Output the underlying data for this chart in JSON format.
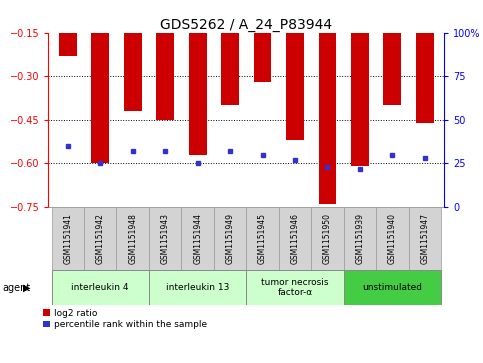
{
  "title": "GDS5262 / A_24_P83944",
  "samples": [
    "GSM1151941",
    "GSM1151942",
    "GSM1151948",
    "GSM1151943",
    "GSM1151944",
    "GSM1151949",
    "GSM1151945",
    "GSM1151946",
    "GSM1151950",
    "GSM1151939",
    "GSM1151940",
    "GSM1151947"
  ],
  "log2_ratio": [
    -0.23,
    -0.6,
    -0.42,
    -0.45,
    -0.57,
    -0.4,
    -0.32,
    -0.52,
    -0.74,
    -0.61,
    -0.4,
    -0.46
  ],
  "percentile_rank": [
    35,
    25,
    32,
    32,
    25,
    32,
    30,
    27,
    23,
    22,
    30,
    28
  ],
  "ylim_left": [
    -0.75,
    -0.15
  ],
  "ylim_right": [
    0,
    100
  ],
  "yticks_left": [
    -0.75,
    -0.6,
    -0.45,
    -0.3,
    -0.15
  ],
  "yticks_right": [
    0,
    25,
    50,
    75,
    100
  ],
  "hlines": [
    -0.3,
    -0.45,
    -0.6
  ],
  "bar_color": "#cc0000",
  "marker_color": "#3333cc",
  "groups": [
    {
      "label": "interleukin 4",
      "start": 0,
      "end": 3,
      "color": "#ccffcc"
    },
    {
      "label": "interleukin 13",
      "start": 3,
      "end": 6,
      "color": "#ccffcc"
    },
    {
      "label": "tumor necrosis\nfactor-α",
      "start": 6,
      "end": 9,
      "color": "#ccffcc"
    },
    {
      "label": "unstimulated",
      "start": 9,
      "end": 12,
      "color": "#44cc44"
    }
  ],
  "legend_items": [
    {
      "label": "log2 ratio",
      "color": "#cc0000"
    },
    {
      "label": "percentile rank within the sample",
      "color": "#3333cc"
    }
  ],
  "agent_label": "agent",
  "sample_bg_color": "#d3d3d3",
  "plot_bg_color": "#ffffff",
  "title_fontsize": 10,
  "tick_fontsize": 7,
  "sample_fontsize": 5.5,
  "group_fontsize": 6.5,
  "legend_fontsize": 6.5
}
